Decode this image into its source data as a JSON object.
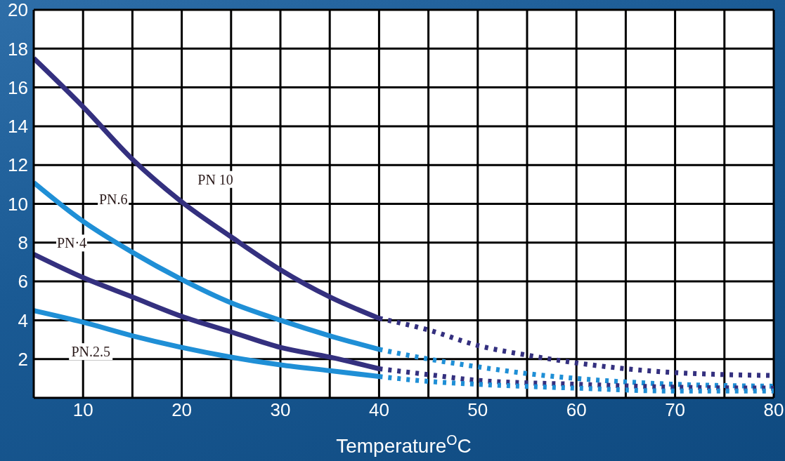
{
  "chart_data": {
    "type": "line",
    "xlabel": "Temperature$^{O}$C",
    "xlim": [
      5,
      80
    ],
    "xticks": [
      10,
      {
        "value": 15,
        "label": null
      },
      20,
      {
        "value": 25,
        "label": null
      },
      30,
      {
        "value": 35,
        "label": null
      },
      40,
      {
        "value": 45,
        "label": null
      },
      50,
      {
        "value": 55,
        "label": null
      },
      60,
      {
        "value": 65,
        "label": null
      },
      70,
      {
        "value": 75,
        "label": null
      },
      80
    ],
    "ylim": [
      0,
      20
    ],
    "yticks": [
      2,
      4,
      6,
      8,
      10,
      12,
      14,
      16,
      18,
      20
    ],
    "grid": true,
    "series": [
      {
        "name": "PN 10",
        "color": "#34307f",
        "line_style": "solid",
        "x": [
          5,
          10,
          15,
          20,
          25,
          30,
          35,
          40
        ],
        "values": [
          17.5,
          15.0,
          12.3,
          10.1,
          8.3,
          6.6,
          5.2,
          4.1
        ]
      },
      {
        "color": "#34307f",
        "line_style": "dotted",
        "x": [
          40,
          45,
          50,
          55,
          60,
          65,
          70,
          75,
          80
        ],
        "values": [
          4.1,
          3.5,
          2.7,
          2.2,
          1.8,
          1.5,
          1.3,
          1.2,
          1.15
        ]
      },
      {
        "name": "PN.6",
        "color": "#1f8fd6",
        "line_style": "solid",
        "x": [
          5,
          10,
          15,
          20,
          25,
          30,
          35,
          40
        ],
        "values": [
          11.1,
          9.1,
          7.5,
          6.1,
          4.9,
          4.0,
          3.2,
          2.5
        ]
      },
      {
        "color": "#1f8fd6",
        "line_style": "dotted",
        "x": [
          40,
          45,
          50,
          55,
          60,
          70,
          80
        ],
        "values": [
          2.5,
          2.0,
          1.6,
          1.25,
          1.0,
          0.7,
          0.6
        ]
      },
      {
        "name": "PN·4",
        "color": "#34307f",
        "line_style": "solid",
        "x": [
          5,
          10,
          15,
          20,
          25,
          30,
          35,
          40
        ],
        "values": [
          7.4,
          6.2,
          5.2,
          4.2,
          3.4,
          2.6,
          2.1,
          1.5
        ]
      },
      {
        "color": "#34307f",
        "line_style": "dotted",
        "x": [
          40,
          45,
          50,
          60,
          70,
          80
        ],
        "values": [
          1.5,
          1.2,
          0.9,
          0.7,
          0.55,
          0.5
        ]
      },
      {
        "name": "PN.2.5",
        "color": "#1f8fd6",
        "line_style": "solid",
        "x": [
          5,
          10,
          15,
          20,
          25,
          30,
          35,
          40
        ],
        "values": [
          4.5,
          3.9,
          3.2,
          2.6,
          2.1,
          1.7,
          1.4,
          1.1
        ]
      },
      {
        "color": "#1f8fd6",
        "line_style": "dotted",
        "x": [
          40,
          45,
          50,
          60,
          70,
          80
        ],
        "values": [
          1.1,
          0.85,
          0.7,
          0.5,
          0.35,
          0.35
        ]
      }
    ]
  }
}
